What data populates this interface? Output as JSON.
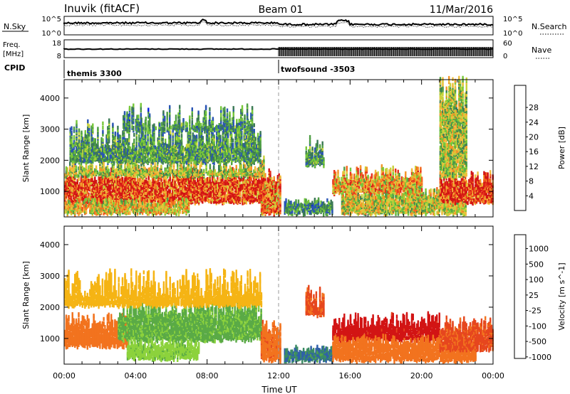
{
  "header": {
    "station": "Inuvik (fitACF)",
    "beam": "Beam 01",
    "date": "11/Mar/2016"
  },
  "top_panels": {
    "nsky_label": "N.Sky",
    "nsky_ticks": [
      "10^5",
      "10^0"
    ],
    "nsearch_label": "N.Search",
    "nsearch_ticks": [
      "10^5",
      "10^0"
    ],
    "freq_label_1": "Freq.",
    "freq_label_2": "[MHz]",
    "freq_ticks": [
      "18",
      "8"
    ],
    "nave_label": "Nave",
    "nave_ticks": [
      "60",
      "0"
    ],
    "cpid_label": "CPID",
    "cpid_segments": [
      {
        "name": "themis 3300",
        "start_hour": 0
      },
      {
        "name": "twofsound -3503",
        "start_hour": 12
      }
    ]
  },
  "chart_data": [
    {
      "type": "heatmap",
      "title": "",
      "xlabel": "",
      "ylabel": "Slant Range [km]",
      "x_range_hours": [
        0,
        24
      ],
      "x_tick_labels": [
        "00:00",
        "04:00",
        "08:00",
        "12:00",
        "16:00",
        "20:00",
        "00:00"
      ],
      "ylim": [
        180,
        4590
      ],
      "y_ticks": [
        1000,
        2000,
        3000,
        4000
      ],
      "colorbar": {
        "label": "Power [dB]",
        "ticks": [
          4,
          8,
          12,
          16,
          20,
          24,
          28
        ],
        "range": [
          0,
          30
        ],
        "colors": [
          "#0a1ee6",
          "#2a55b5",
          "#3c7a55",
          "#4f9e46",
          "#78c83a",
          "#c8d23c",
          "#f0be3c",
          "#f59628",
          "#f2691e",
          "#e6321e",
          "#d21414"
        ]
      },
      "regions": [
        {
          "t0": 0.0,
          "t1": 11.2,
          "r0": 600,
          "r1": 1450,
          "level": 26
        },
        {
          "t0": 0.0,
          "t1": 11.2,
          "r0": 1450,
          "r1": 1800,
          "level": 14
        },
        {
          "t0": 0.3,
          "t1": 11.0,
          "r0": 1900,
          "r1": 2800,
          "level": 9
        },
        {
          "t0": 3.2,
          "t1": 10.5,
          "r0": 2900,
          "r1": 3200,
          "level": 8
        },
        {
          "t0": 0.0,
          "t1": 7.0,
          "r0": 250,
          "r1": 600,
          "level": 17
        },
        {
          "t0": 11.0,
          "t1": 12.1,
          "r0": 250,
          "r1": 1400,
          "level": 22
        },
        {
          "t0": 12.3,
          "t1": 15.0,
          "r0": 250,
          "r1": 600,
          "level": 8
        },
        {
          "t0": 15.5,
          "t1": 22.5,
          "r0": 250,
          "r1": 900,
          "level": 15
        },
        {
          "t0": 15.0,
          "t1": 20.0,
          "r0": 900,
          "r1": 1500,
          "level": 19
        },
        {
          "t0": 21.0,
          "t1": 24.0,
          "r0": 600,
          "r1": 1400,
          "level": 27
        },
        {
          "t0": 21.0,
          "t1": 22.5,
          "r0": 1400,
          "r1": 4300,
          "level": 14
        },
        {
          "t0": 13.5,
          "t1": 14.5,
          "r0": 1800,
          "r1": 2400,
          "level": 9
        }
      ]
    },
    {
      "type": "heatmap",
      "title": "",
      "xlabel": "Time UT",
      "ylabel": "Slant Range [km]",
      "x_range_hours": [
        0,
        24
      ],
      "x_tick_labels": [
        "00:00",
        "04:00",
        "08:00",
        "12:00",
        "16:00",
        "20:00",
        "00:00"
      ],
      "ylim": [
        180,
        4590
      ],
      "y_ticks": [
        1000,
        2000,
        3000,
        4000
      ],
      "colorbar": {
        "label": "Velocity [m s^-1]",
        "ticks": [
          "1000",
          "500",
          "100",
          "25",
          "-25",
          "-100",
          "-500",
          "-1000"
        ],
        "colors": [
          "#2838c8",
          "#2f5faa",
          "#3c8c64",
          "#5aaa46",
          "#8cd23c",
          "#c8c8c8",
          "#f5b414",
          "#f59614",
          "#f2731e",
          "#e6461e",
          "#d21414"
        ]
      },
      "regions": [
        {
          "t0": 0.0,
          "t1": 3.5,
          "r0": 700,
          "r1": 1500,
          "level": -150
        },
        {
          "t0": 3.0,
          "t1": 11.0,
          "r0": 900,
          "r1": 1900,
          "level": 300
        },
        {
          "t0": 0.0,
          "t1": 11.0,
          "r0": 2000,
          "r1": 2700,
          "level": 0
        },
        {
          "t0": 3.5,
          "t1": 7.5,
          "r0": 300,
          "r1": 800,
          "level": 200
        },
        {
          "t0": 11.0,
          "t1": 12.1,
          "r0": 250,
          "r1": 1300,
          "level": -200
        },
        {
          "t0": 12.3,
          "t1": 15.0,
          "r0": 250,
          "r1": 600,
          "level": 700
        },
        {
          "t0": 15.0,
          "t1": 21.0,
          "r0": 900,
          "r1": 1500,
          "level": -700
        },
        {
          "t0": 15.0,
          "t1": 23.0,
          "r0": 250,
          "r1": 900,
          "level": -150
        },
        {
          "t0": 21.0,
          "t1": 24.0,
          "r0": 600,
          "r1": 1400,
          "level": -300
        },
        {
          "t0": 13.5,
          "t1": 14.5,
          "r0": 1700,
          "r1": 2300,
          "level": -300
        }
      ]
    }
  ]
}
